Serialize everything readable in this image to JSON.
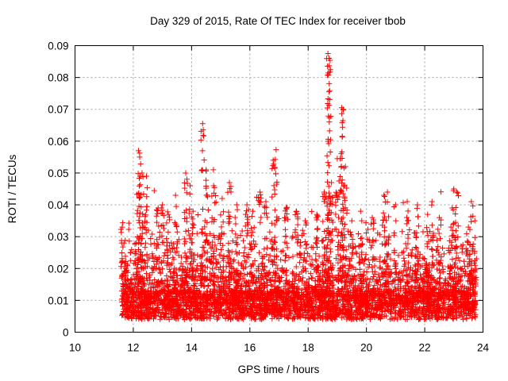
{
  "chart_data": {
    "type": "scatter",
    "title": "Day 329 of 2015, Rate Of TEC Index for receiver tbob",
    "xlabel": "GPS time / hours",
    "ylabel": "ROTI / TECUs",
    "xlim": [
      10,
      24
    ],
    "ylim": [
      0,
      0.09
    ],
    "x_ticks": [
      10,
      12,
      14,
      16,
      18,
      20,
      22,
      24
    ],
    "x_tick_labels": [
      "10",
      "12",
      "14",
      "16",
      "18",
      "20",
      "22",
      "24"
    ],
    "y_ticks": [
      0,
      0.01,
      0.02,
      0.03,
      0.04,
      0.05,
      0.06,
      0.07,
      0.08,
      0.09
    ],
    "y_tick_labels": [
      "0",
      "0.01",
      "0.02",
      "0.03",
      "0.04",
      "0.05",
      "0.06",
      "0.07",
      "0.08",
      "0.09"
    ],
    "grid": true,
    "marker": "plus",
    "color": "#ff0000",
    "series": [
      {
        "name": "ROTI",
        "x": [
          11.62,
          11.68,
          11.75,
          12.1,
          12.18,
          12.22,
          12.3,
          12.45,
          12.85,
          13.0,
          13.2,
          13.45,
          13.8,
          13.95,
          14.05,
          14.38,
          14.5,
          14.75,
          15.05,
          15.3,
          15.55,
          15.9,
          16.1,
          16.35,
          16.55,
          16.8,
          16.9,
          17.25,
          17.6,
          17.9,
          18.3,
          18.55,
          18.68,
          18.72,
          18.8,
          19.0,
          19.15,
          19.2,
          19.28,
          19.5,
          19.8,
          20.2,
          20.6,
          20.72,
          21.0,
          21.4,
          21.75,
          22.1,
          22.25,
          22.5,
          22.9,
          23.0,
          23.1,
          23.5,
          23.6,
          23.72
        ],
        "y": [
          0.033,
          0.028,
          0.02,
          0.028,
          0.057,
          0.055,
          0.05,
          0.049,
          0.039,
          0.04,
          0.037,
          0.043,
          0.05,
          0.046,
          0.038,
          0.0655,
          0.051,
          0.051,
          0.042,
          0.047,
          0.04,
          0.04,
          0.038,
          0.044,
          0.041,
          0.054,
          0.0573,
          0.039,
          0.038,
          0.035,
          0.037,
          0.044,
          0.0875,
          0.086,
          0.047,
          0.0545,
          0.0705,
          0.07,
          0.052,
          0.035,
          0.038,
          0.036,
          0.043,
          0.044,
          0.04,
          0.041,
          0.04,
          0.037,
          0.041,
          0.036,
          0.033,
          0.045,
          0.044,
          0.033,
          0.041,
          0.035
        ]
      }
    ],
    "generated_cloud": {
      "description_of_data": "dense noise band of ROTI values between hours 11.6 and 23.75",
      "x_start": 11.6,
      "x_end": 23.75,
      "baseline_min": 0.004,
      "baseline_max": 0.013,
      "burst_max": 0.032,
      "count": 4200
    }
  }
}
